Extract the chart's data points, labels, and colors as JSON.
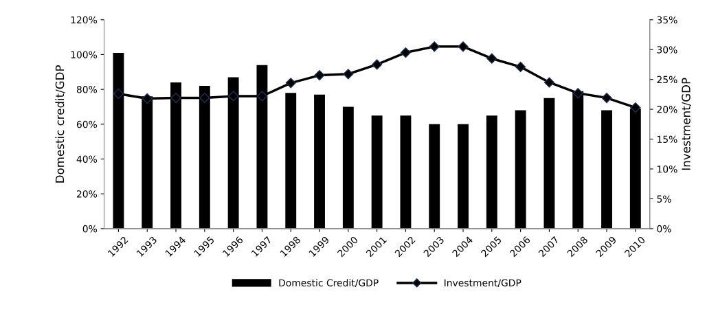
{
  "chart_data": {
    "type": "bar",
    "categories": [
      "1992",
      "1993",
      "1994",
      "1995",
      "1996",
      "1997",
      "1998",
      "1999",
      "2000",
      "2001",
      "2002",
      "2003",
      "2004",
      "2005",
      "2006",
      "2007",
      "2008",
      "2009",
      "2010"
    ],
    "ylabel": "Domestic credit/GDP",
    "y2label": "Investment/GDP",
    "ylim": [
      0,
      1.2
    ],
    "yticks": [
      {
        "value": 0,
        "label": "0%"
      },
      {
        "value": 0.2,
        "label": "20%"
      },
      {
        "value": 0.4,
        "label": "40%"
      },
      {
        "value": 0.6,
        "label": "60%"
      },
      {
        "value": 0.8,
        "label": "80%"
      },
      {
        "value": 1.0,
        "label": "100%"
      },
      {
        "value": 1.2,
        "label": "120%"
      }
    ],
    "y2lim": [
      0,
      0.35
    ],
    "y2ticks": [
      {
        "value": 0,
        "label": "0%"
      },
      {
        "value": 0.05,
        "label": "5%"
      },
      {
        "value": 0.1,
        "label": "10%"
      },
      {
        "value": 0.15,
        "label": "15%"
      },
      {
        "value": 0.2,
        "label": "20%"
      },
      {
        "value": 0.25,
        "label": "25%"
      },
      {
        "value": 0.3,
        "label": "30%"
      },
      {
        "value": 0.35,
        "label": "35%"
      }
    ],
    "series": [
      {
        "name": "Domestic Credit/GDP",
        "color": "#000000",
        "values": [
          1.01,
          0.76,
          0.84,
          0.82,
          0.87,
          0.94,
          0.78,
          0.77,
          0.7,
          0.65,
          0.65,
          0.6,
          0.6,
          0.65,
          0.68,
          0.75,
          0.79,
          0.68,
          0.69
        ]
      },
      {
        "name": "Investment/GDP",
        "type": "line",
        "axis": "y2",
        "color": "#000000",
        "marker": "diamond",
        "values": [
          0.226,
          0.218,
          0.219,
          0.219,
          0.222,
          0.222,
          0.244,
          0.257,
          0.259,
          0.275,
          0.295,
          0.305,
          0.305,
          0.285,
          0.271,
          0.245,
          0.227,
          0.219,
          0.203
        ]
      }
    ],
    "legend": "bottom",
    "grid": false
  }
}
